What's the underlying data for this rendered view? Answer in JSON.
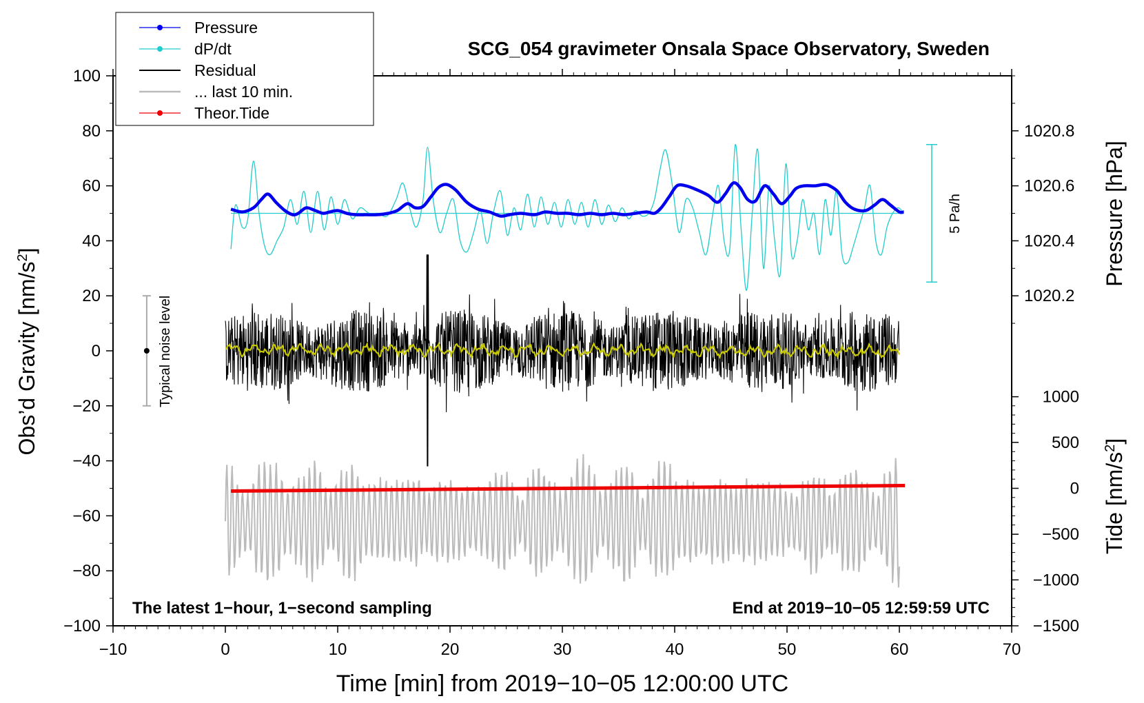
{
  "chart_data": {
    "type": "line",
    "title": "SCG_054 gravimeter Onsala Space Observatory, Sweden",
    "xlabel": "Time [min] from 2019−10−05 12:00:00 UTC",
    "ylabel_left": "Obs’d Gravity [nm/s",
    "ylabel_left_sup": "2",
    "ylabel_left_end": "]",
    "ylabel_right_top": "Pressure [hPa]",
    "ylabel_right_bottom": "Tide [nm/s",
    "ylabel_right_bottom_sup": "2",
    "ylabel_right_bottom_end": "]",
    "xlim": [
      -10,
      70
    ],
    "ylim_left": [
      -100,
      100
    ],
    "x_ticks": [
      "−10",
      "0",
      "10",
      "20",
      "30",
      "40",
      "50",
      "60",
      "70"
    ],
    "x_tick_values": [
      -10,
      0,
      10,
      20,
      30,
      40,
      50,
      60,
      70
    ],
    "y_ticks_left": [
      "100",
      "80",
      "60",
      "40",
      "20",
      "0",
      "−20",
      "−40",
      "−60",
      "−80",
      "−100"
    ],
    "y_tick_values_left": [
      100,
      80,
      60,
      40,
      20,
      0,
      -20,
      -40,
      -60,
      -80,
      -100
    ],
    "pressure_axis": {
      "ticks": [
        "1020.8",
        "1020.6",
        "1020.4",
        "1020.2"
      ],
      "tick_values": [
        1020.8,
        1020.6,
        1020.4,
        1020.2
      ],
      "left_equiv": [
        80,
        60,
        40,
        20
      ]
    },
    "tide_axis": {
      "ticks": [
        "1000",
        "500",
        "0",
        "−500",
        "−1000",
        "−1500"
      ],
      "tick_values": [
        1000,
        500,
        0,
        -500,
        -1000,
        -1500
      ],
      "left_equiv": [
        -16.7,
        -33.3,
        -50,
        -66.7,
        -83.3,
        -100
      ]
    },
    "legend": [
      {
        "label": "Pressure",
        "color": "#0000ee",
        "marker": true
      },
      {
        "label": "dP/dt",
        "color": "#22cccc",
        "marker": true
      },
      {
        "label": "Residual",
        "color": "#000000",
        "marker": false
      },
      {
        "label": "... last 10 min.",
        "color": "#bbbbbb",
        "marker": false
      },
      {
        "label": "Theor.Tide",
        "color": "#ee0000",
        "marker": true
      }
    ],
    "series": [
      {
        "name": "Pressure",
        "color": "#0000ee",
        "x": [
          0.5,
          1.5,
          2.5,
          3.2,
          3.8,
          4.5,
          5.3,
          6.0,
          6.5,
          7.2,
          8.0,
          8.7,
          9.3,
          10.0,
          10.8,
          11.6,
          12.5,
          13.5,
          14.5,
          15.3,
          16.2,
          16.9,
          17.6,
          18.3,
          19.0,
          19.7,
          20.5,
          21.5,
          22.5,
          23.5,
          24.5,
          25.3,
          26.3,
          27.5,
          28.5,
          29.5,
          30.5,
          31.5,
          32.5,
          33.5,
          34.5,
          35.5,
          36.5,
          37.5,
          38.2,
          38.8,
          39.5,
          40.2,
          41.0,
          42.0,
          43.0,
          43.8,
          44.5,
          45.2,
          45.8,
          46.5,
          47.2,
          48.0,
          48.8,
          49.5,
          50.2,
          50.8,
          51.5,
          52.5,
          53.3,
          53.8,
          54.5,
          55.2,
          56.0,
          57.0,
          57.8,
          58.5,
          59.2,
          60.0,
          60.4
        ],
        "y": [
          51.5,
          50.5,
          52,
          55,
          57,
          54,
          51,
          49.5,
          50,
          52,
          51,
          50,
          50.5,
          51,
          50,
          49.5,
          49.5,
          49.5,
          50,
          51,
          53.5,
          52,
          52.5,
          56,
          59.5,
          60.5,
          58.5,
          54,
          51.5,
          50.5,
          49,
          49.5,
          50,
          49.5,
          50.5,
          50,
          50,
          49.5,
          50,
          49.5,
          50,
          49.5,
          50,
          50.5,
          50,
          52,
          56,
          60,
          60,
          58.5,
          56.5,
          54,
          57,
          61,
          59.5,
          55,
          54.5,
          60,
          57,
          53.5,
          56,
          59,
          60,
          60,
          60.5,
          60,
          58,
          54,
          51.5,
          51,
          53,
          55,
          53,
          50.5,
          50.5
        ]
      },
      {
        "name": "dP/dt",
        "color": "#22cccc",
        "x": [
          0.5,
          0.9,
          1.5,
          2.0,
          2.5,
          3.0,
          3.5,
          4.0,
          4.6,
          5.2,
          5.8,
          6.4,
          7.0,
          7.6,
          8.2,
          8.8,
          9.4,
          10.0,
          10.6,
          11.3,
          12.0,
          12.8,
          13.6,
          14.4,
          15.2,
          15.8,
          16.4,
          17.0,
          17.6,
          18.0,
          18.5,
          19.1,
          19.7,
          20.3,
          20.9,
          21.5,
          22.1,
          22.7,
          23.3,
          23.9,
          24.5,
          25.1,
          25.7,
          26.3,
          26.9,
          27.5,
          28.1,
          28.7,
          29.3,
          29.9,
          30.5,
          31.1,
          31.7,
          32.3,
          32.9,
          33.5,
          34.1,
          34.7,
          35.3,
          35.9,
          36.5,
          37.1,
          37.7,
          38.2,
          38.7,
          39.2,
          39.8,
          40.4,
          41.0,
          41.6,
          42.2,
          42.8,
          43.4,
          43.9,
          44.4,
          44.9,
          45.4,
          45.9,
          46.4,
          46.9,
          47.4,
          47.9,
          48.4,
          48.9,
          49.4,
          49.9,
          50.4,
          50.9,
          51.4,
          51.9,
          52.4,
          52.9,
          53.4,
          53.9,
          54.4,
          54.9,
          55.4,
          55.9,
          56.4,
          56.9,
          57.4,
          57.9,
          58.4,
          58.9,
          59.4,
          59.9,
          60.4
        ],
        "y": [
          37,
          53,
          45,
          48,
          69,
          50,
          38,
          35,
          40,
          45,
          55,
          46,
          58,
          43,
          58,
          44,
          56,
          46,
          55,
          48,
          52,
          50,
          50,
          49,
          55,
          61,
          52,
          45,
          55,
          74,
          55,
          43,
          50,
          55,
          40,
          36,
          43,
          51,
          39,
          51,
          58,
          42,
          52,
          44,
          57,
          45,
          56,
          46,
          54,
          45,
          55,
          46,
          54,
          45,
          55,
          46,
          53,
          47,
          52,
          48,
          51,
          49,
          50,
          55,
          66,
          73,
          60,
          43,
          55,
          52,
          43,
          35,
          50,
          60,
          40,
          37,
          75,
          45,
          22,
          50,
          73,
          30,
          60,
          40,
          28,
          68,
          35,
          40,
          55,
          44,
          50,
          35,
          55,
          42,
          58,
          35,
          32,
          38,
          45,
          52,
          60,
          40,
          35,
          45,
          50,
          52,
          50
        ]
      },
      {
        "name": "Residual",
        "color": "#000000",
        "x_range": [
          0,
          60
        ],
        "typical_amplitude": 15,
        "min": -42,
        "max": 35
      },
      {
        "name": "... last 10 min.",
        "color": "#bbbbbb",
        "x_range": [
          0,
          60
        ],
        "center": -62,
        "amplitude": 20
      },
      {
        "name": "Theor.Tide",
        "color": "#ee0000",
        "x": [
          0.5,
          60.5
        ],
        "tide_values": [
          -30,
          30
        ]
      }
    ],
    "noise_bar": {
      "label": "Typical noise level",
      "x": -7,
      "y": 0,
      "y_low": -20,
      "y_high": 20
    },
    "dpdt_scale": {
      "label": "5 Pa/h",
      "y_low": 25,
      "y_high": 75
    },
    "footer_left": "The latest 1−hour, 1−second sampling",
    "footer_right": "End at 2019−10−05 12:59:59 UTC"
  }
}
